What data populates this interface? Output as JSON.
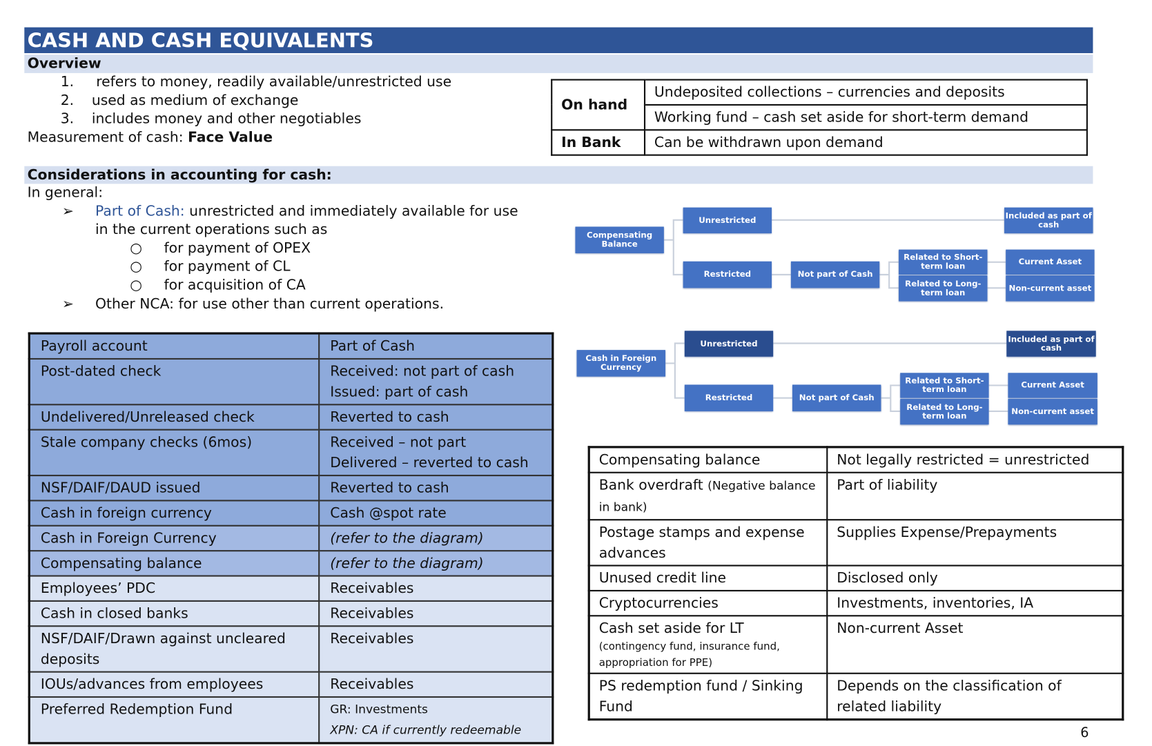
{
  "title": "CASH AND CASH EQUIVALENTS",
  "overview": {
    "heading": "Overview",
    "items": [
      {
        "num": "1.",
        "text": "refers to money, readily available/unrestricted use"
      },
      {
        "num": "2.",
        "text": "used as medium of exchange"
      },
      {
        "num": "3.",
        "text": "includes money and other negotiables"
      }
    ],
    "measurement_label": "Measurement of cash:",
    "measurement_value": "Face Value"
  },
  "cash_table": {
    "rows": [
      {
        "head": "On hand",
        "desc": "Undeposited collections – currencies and deposits"
      },
      {
        "head": "",
        "desc": "Working fund – cash set aside for short-term demand"
      },
      {
        "head": "In Bank",
        "desc": "Can be withdrawn upon demand"
      }
    ]
  },
  "considerations": {
    "heading": "Considerations in accounting for cash:",
    "general": "In general:",
    "part_of_cash_label": "Part of Cash:",
    "part_of_cash_text": "unrestricted and immediately available for use",
    "part_of_cash_text2": "in the current operations such as",
    "sub_items": [
      "for payment of OPEX",
      "for payment of CL",
      "for acquisition of CA"
    ],
    "other": "Other NCA: for use other than current operations."
  },
  "left_table": {
    "rows": [
      {
        "item": "Payroll account",
        "treatment": [
          "Part of Cash"
        ]
      },
      {
        "item": "Post-dated check",
        "treatment": [
          "Received: not part of cash",
          "Issued: part of cash"
        ]
      },
      {
        "item": "Undelivered/Unreleased check",
        "treatment": [
          "Reverted to cash"
        ]
      },
      {
        "item": "Stale company checks (6mos)",
        "treatment": [
          "Received – not part",
          "Delivered – reverted to cash"
        ]
      },
      {
        "item": "NSF/DAIF/DAUD issued",
        "treatment": [
          "Reverted to cash"
        ]
      },
      {
        "item": "Cash in foreign currency",
        "treatment": [
          "Cash @spot rate"
        ]
      },
      {
        "item": "Cash in Foreign Currency",
        "treatment": [
          "(refer to the diagram)"
        ]
      },
      {
        "item": "Compensating balance",
        "treatment": [
          "(refer to the diagram)"
        ]
      },
      {
        "item": "Employees’ PDC",
        "treatment": [
          "Receivables"
        ]
      },
      {
        "item": "Cash in closed banks",
        "treatment": [
          "Receivables"
        ]
      },
      {
        "item": "NSF/DAIF/Drawn against uncleared deposits",
        "treatment": [
          "Receivables"
        ]
      },
      {
        "item": "IOUs/advances from employees",
        "treatment": [
          "Receivables"
        ]
      },
      {
        "item": "Preferred Redemption Fund",
        "treatment": [
          "GR: Investments",
          "XPN: CA if currently redeemable"
        ]
      }
    ]
  },
  "diagrams": [
    {
      "root": "Compensating Balance",
      "unrestricted": "Unrestricted",
      "included": "Included as part of cash",
      "restricted": "Restricted",
      "not_part": "Not part of Cash",
      "short": "Related to Short-term loan",
      "long": "Related to Long-term loan",
      "current": "Current Asset",
      "noncurrent": "Non-current asset"
    },
    {
      "root": "Cash in Foreign Currency",
      "unrestricted": "Unrestricted",
      "included": "Included as part of cash",
      "restricted": "Restricted",
      "not_part": "Not part of Cash",
      "short": "Related to Short-term loan",
      "long": "Related to Long-term loan",
      "current": "Current Asset",
      "noncurrent": "Non-current asset"
    }
  ],
  "right_table": {
    "rows": [
      {
        "item": "Compensating balance",
        "note": "",
        "treatment": "Not legally restricted = unrestricted"
      },
      {
        "item": "Bank overdraft",
        "note": "(Negative balance in bank)",
        "treatment": "Part of liability"
      },
      {
        "item": "Postage stamps and expense advances",
        "note": "",
        "treatment": "Supplies Expense/Prepayments"
      },
      {
        "item": "Unused credit line",
        "note": "",
        "treatment": "Disclosed only"
      },
      {
        "item": "Cryptocurrencies",
        "note": "",
        "treatment": "Investments, inventories, IA"
      },
      {
        "item": "Cash set aside for LT",
        "note": "(contingency fund, insurance fund, appropriation for PPE)",
        "treatment": "Non-current Asset"
      },
      {
        "item": "PS redemption fund / Sinking Fund",
        "note": "",
        "treatment": "Depends on the classification of related liability"
      }
    ]
  },
  "page_number": "6",
  "colors": {
    "title_bar": "#2f5597",
    "band": "#d6dff0",
    "box": "#4472c4",
    "box_dark": "#2a4d8f",
    "row_dark": "#8eaadb",
    "row_light": "#dae3f3"
  }
}
